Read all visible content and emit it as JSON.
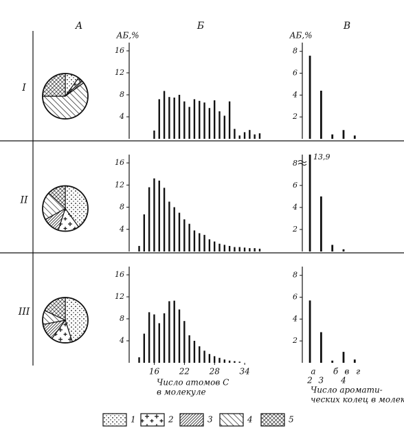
{
  "chart_data": [
    {
      "type": "pie",
      "title": "А",
      "row_label": "I",
      "values": [
        10,
        3,
        2,
        60,
        25
      ]
    },
    {
      "type": "bar",
      "title": "Б",
      "y_label": "АБ,%",
      "x": [
        16,
        17,
        18,
        19,
        20,
        21,
        22,
        23,
        24,
        25,
        26,
        27,
        28,
        29,
        30,
        31,
        32,
        33,
        34,
        35,
        36,
        37
      ],
      "values": [
        1.5,
        7.2,
        8.7,
        7.6,
        7.5,
        8.0,
        6.8,
        5.8,
        7.2,
        6.9,
        6.6,
        5.6,
        7.0,
        5.0,
        4.2,
        6.8,
        1.8,
        0.6,
        1.2,
        1.6,
        0.8,
        1.0
      ],
      "xlim": [
        11,
        40
      ],
      "ylim": [
        0,
        17.5
      ],
      "yticks": [
        4,
        8,
        12,
        16
      ],
      "color": "#111111"
    },
    {
      "type": "bar",
      "title": "В",
      "y_label": "АБ,%",
      "values": [
        7.6,
        4.4,
        0.4,
        0.8,
        0.3
      ],
      "ylim": [
        0,
        8.8
      ],
      "yticks": [
        2,
        4,
        6,
        8
      ],
      "color": "#111111"
    },
    {
      "type": "pie",
      "row_label": "II",
      "values": [
        40,
        15,
        12,
        20,
        13
      ]
    },
    {
      "type": "bar",
      "x": [
        13,
        14,
        15,
        16,
        17,
        18,
        19,
        20,
        21,
        22,
        23,
        24,
        25,
        26,
        27,
        28,
        29,
        30,
        31,
        32,
        33,
        34,
        35,
        36,
        37
      ],
      "values": [
        1,
        6.7,
        11.6,
        13.2,
        12.8,
        11.5,
        9,
        8,
        7,
        5.8,
        5,
        3.8,
        3.3,
        3,
        2.2,
        1.8,
        1.4,
        1.2,
        1,
        0.8,
        0.8,
        0.7,
        0.6,
        0.6,
        0.5
      ],
      "xlim": [
        11,
        40
      ],
      "ylim": [
        0,
        17.5
      ],
      "yticks": [
        4,
        8,
        12,
        16
      ],
      "color": "#111111"
    },
    {
      "type": "bar",
      "values": [
        13.9,
        5,
        0.6,
        0.2
      ],
      "value_labels": [
        "13,9",
        null,
        null,
        null
      ],
      "axis_break": true,
      "ylim": [
        0,
        8.8
      ],
      "yticks": [
        2,
        4,
        6,
        8
      ],
      "color": "#111111"
    },
    {
      "type": "pie",
      "row_label": "III",
      "values": [
        45,
        15,
        12,
        10,
        18
      ]
    },
    {
      "type": "bar",
      "x": [
        13,
        14,
        15,
        16,
        17,
        18,
        19,
        20,
        21,
        22,
        23,
        24,
        25,
        26,
        27,
        28,
        29,
        30,
        31,
        32,
        33
      ],
      "values": [
        1,
        5.3,
        9.2,
        8.8,
        7.2,
        9,
        11.2,
        11.3,
        9.7,
        7.6,
        5.0,
        4.0,
        3.0,
        2.2,
        1.6,
        1.2,
        0.9,
        0.6,
        0.4,
        0.3,
        0.2
      ],
      "xlim": [
        11,
        40
      ],
      "ylim": [
        0,
        17.5
      ],
      "yticks": [
        4,
        8,
        12,
        16
      ],
      "xticks": [
        16,
        22,
        28,
        34
      ],
      "xlabel": [
        "Число атомов С",
        "в молекуле"
      ],
      "color": "#111111"
    },
    {
      "type": "bar",
      "values": [
        5.7,
        2.8,
        0.2,
        1.0,
        0.3
      ],
      "categories": [
        "2",
        "3",
        null,
        "4",
        null
      ],
      "sub_labels": [
        "а",
        null,
        "б",
        "в",
        "г"
      ],
      "xlabel": [
        "Число аромати-",
        "ческих колец в молекуле"
      ],
      "ylim": [
        0,
        8.8
      ],
      "yticks": [
        2,
        4,
        6,
        8
      ],
      "color": "#111111"
    }
  ],
  "legend": {
    "labels": [
      "1",
      "2",
      "3",
      "4",
      "5"
    ],
    "patterns": [
      "dots",
      "crosses",
      "dense",
      "hatch",
      "cross"
    ]
  }
}
